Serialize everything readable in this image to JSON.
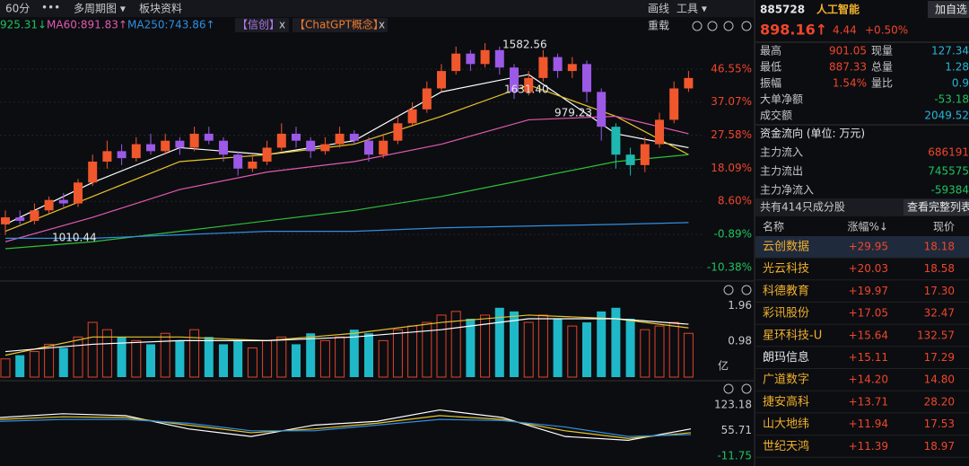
{
  "toolbar": {
    "period": "60分",
    "more": "•••",
    "multi_period": "多周期图 ▾",
    "sector_info": "板块资料",
    "draw": "画线",
    "tools": "工具 ▾"
  },
  "ma_bar": {
    "ma30": "925.31↓",
    "ma60": "MA60:891.83↑",
    "ma250": "MA250:743.86↑",
    "tags": [
      {
        "name": "【信创】",
        "close": "x"
      },
      {
        "name": "【ChatGPT概念】",
        "close": "x"
      }
    ],
    "reload": "重载"
  },
  "quote": {
    "code": "885728",
    "name": "人工智能",
    "add": "加自选",
    "price": "898.16↑",
    "change": "4.44",
    "change_pct": "+0.50%",
    "stats": [
      [
        "最高",
        "901.05",
        "现量",
        "127.34"
      ],
      [
        "最低",
        "887.33",
        "总量",
        "1.28"
      ],
      [
        "振幅",
        "1.54%",
        "量比",
        "0.9"
      ]
    ],
    "big_net": [
      "大单净额",
      "-53.18"
    ],
    "turnover": [
      "成交额",
      "2049.52"
    ]
  },
  "fund_flow": {
    "title": "资金流向 (单位: 万元)",
    "rows": [
      [
        "主力流入",
        "686191"
      ],
      [
        "主力流出",
        "745575"
      ],
      [
        "主力净流入",
        "-59384"
      ]
    ]
  },
  "constituents": {
    "count": "共有414只成分股",
    "view_all": "查看完整列表",
    "header": [
      "名称",
      "涨幅%↓",
      "现价"
    ],
    "rows": [
      [
        "云创数据",
        "+29.95",
        "18.18"
      ],
      [
        "光云科技",
        "+20.03",
        "18.58"
      ],
      [
        "科德教育",
        "+19.97",
        "17.30"
      ],
      [
        "彩讯股份",
        "+17.05",
        "32.47"
      ],
      [
        "星环科技-U",
        "+15.64",
        "132.57"
      ],
      [
        "朗玛信息",
        "+15.11",
        "17.29"
      ],
      [
        "广道数字",
        "+14.20",
        "14.80"
      ],
      [
        "捷安高科",
        "+13.71",
        "28.20"
      ],
      [
        "山大地纬",
        "+11.94",
        "17.53"
      ],
      [
        "世纪天鸿",
        "+11.39",
        "18.97"
      ]
    ]
  },
  "main_chart": {
    "ylim": [
      -13.5,
      56.07
    ],
    "yticks": [
      {
        "value": 46.55,
        "label": "46.55%"
      },
      {
        "value": 37.07,
        "label": "37.07%"
      },
      {
        "value": 27.58,
        "label": "27.58%"
      },
      {
        "value": 18.09,
        "label": "18.09%"
      },
      {
        "value": 8.6,
        "label": "8.60%"
      },
      {
        "value": -0.89,
        "label": "-0.89%"
      },
      {
        "value": -10.38,
        "label": "-10.38%"
      }
    ],
    "candles": {
      "open": [
        2,
        4,
        3,
        6,
        9,
        8,
        14,
        20,
        23,
        21,
        25,
        23,
        26,
        24,
        28,
        26,
        22,
        18,
        20,
        24,
        28,
        26,
        23,
        25,
        28,
        26,
        22,
        26,
        31,
        35,
        41,
        46,
        51,
        48,
        52,
        47,
        40,
        44,
        50,
        46,
        48,
        40,
        30,
        22,
        19,
        25,
        32,
        41
      ],
      "close": [
        4,
        3,
        6,
        9,
        8,
        14,
        20,
        23,
        21,
        25,
        23,
        26,
        24,
        28,
        26,
        22,
        18,
        20,
        24,
        28,
        26,
        23,
        25,
        28,
        26,
        22,
        26,
        31,
        35,
        41,
        46,
        51,
        48,
        52,
        47,
        40,
        44,
        50,
        46,
        48,
        40,
        30,
        22,
        19,
        25,
        32,
        41,
        44
      ],
      "high": [
        6,
        6,
        8,
        10,
        11,
        15,
        22,
        26,
        25,
        27,
        28,
        28,
        27,
        30,
        30,
        27,
        23,
        22,
        26,
        31,
        30,
        27,
        27,
        30,
        29,
        27,
        28,
        33,
        37,
        43,
        48,
        53,
        52,
        54,
        53,
        48,
        46,
        52,
        51,
        50,
        49,
        41,
        31,
        24,
        27,
        34,
        43,
        46
      ],
      "low": [
        -1,
        2,
        2,
        5,
        7,
        7,
        13,
        18,
        19,
        20,
        22,
        22,
        22,
        23,
        25,
        20,
        16,
        17,
        19,
        23,
        24,
        21,
        22,
        24,
        25,
        20,
        21,
        25,
        30,
        34,
        40,
        45,
        46,
        47,
        45,
        38,
        39,
        43,
        44,
        44,
        37,
        26,
        18,
        16,
        17,
        24,
        31,
        40
      ]
    },
    "ma_x": [
      0,
      6,
      12,
      18,
      24,
      30,
      36,
      42,
      47
    ],
    "ma_lines": [
      {
        "color": "#ffffff",
        "values": [
          2,
          14,
          24,
          22,
          26,
          40,
          45,
          28,
          24
        ]
      },
      {
        "color": "#e8c42a",
        "values": [
          0,
          10,
          20,
          22,
          25,
          33,
          42,
          33,
          22
        ]
      },
      {
        "color": "#e05ab0",
        "values": [
          -3,
          4,
          12,
          17,
          20,
          25,
          32,
          33,
          28
        ]
      },
      {
        "color": "#2fbf3a",
        "values": [
          -5,
          -3,
          0,
          3,
          6,
          10,
          15,
          20,
          22
        ]
      },
      {
        "color": "#2f8fe0",
        "values": [
          -2,
          -2,
          -1,
          0,
          0,
          1,
          1.5,
          2,
          2.5
        ]
      }
    ],
    "annotations": [
      "1582.56",
      "1631.40",
      "979.23",
      "1010.44"
    ]
  },
  "volume_chart": {
    "ylim": [
      0,
      2.51
    ],
    "yticks": [
      0.98,
      1.96
    ],
    "unit": "亿",
    "values": [
      0.5,
      0.6,
      0.7,
      0.9,
      0.8,
      1.1,
      1.5,
      1.3,
      1.1,
      1.0,
      0.9,
      1.2,
      1.0,
      1.3,
      1.1,
      0.9,
      1.0,
      0.8,
      1.0,
      1.1,
      0.9,
      1.2,
      1.0,
      1.1,
      1.3,
      1.2,
      1.0,
      1.3,
      1.4,
      1.5,
      1.7,
      1.8,
      1.6,
      1.7,
      1.9,
      1.8,
      1.5,
      1.7,
      1.6,
      1.4,
      1.5,
      1.8,
      1.9,
      1.6,
      1.3,
      1.4,
      1.5,
      1.2
    ],
    "ma_x": [
      0,
      6,
      12,
      18,
      24,
      30,
      36,
      42,
      47
    ],
    "ma_lines": [
      {
        "color": "#e8c42a",
        "values": [
          0.6,
          1.1,
          1.1,
          1.0,
          1.2,
          1.5,
          1.7,
          1.6,
          1.35
        ]
      },
      {
        "color": "#ffffff",
        "values": [
          0.7,
          0.9,
          1.0,
          1.0,
          1.1,
          1.3,
          1.6,
          1.6,
          1.45
        ]
      }
    ]
  },
  "indicator_chart": {
    "ylim": [
      -37.8,
      137.4
    ],
    "yticks": [
      -11.75,
      55.71,
      123.18
    ],
    "lines": [
      {
        "color": "#ffffff",
        "values": [
          90,
          100,
          95,
          60,
          40,
          70,
          80,
          110,
          90,
          40,
          30,
          60
        ]
      },
      {
        "color": "#e8c42a",
        "values": [
          85,
          92,
          90,
          70,
          50,
          60,
          75,
          95,
          85,
          55,
          35,
          50
        ]
      },
      {
        "color": "#2f8fe0",
        "values": [
          80,
          85,
          85,
          75,
          55,
          55,
          70,
          85,
          82,
          65,
          40,
          45
        ]
      }
    ]
  }
}
